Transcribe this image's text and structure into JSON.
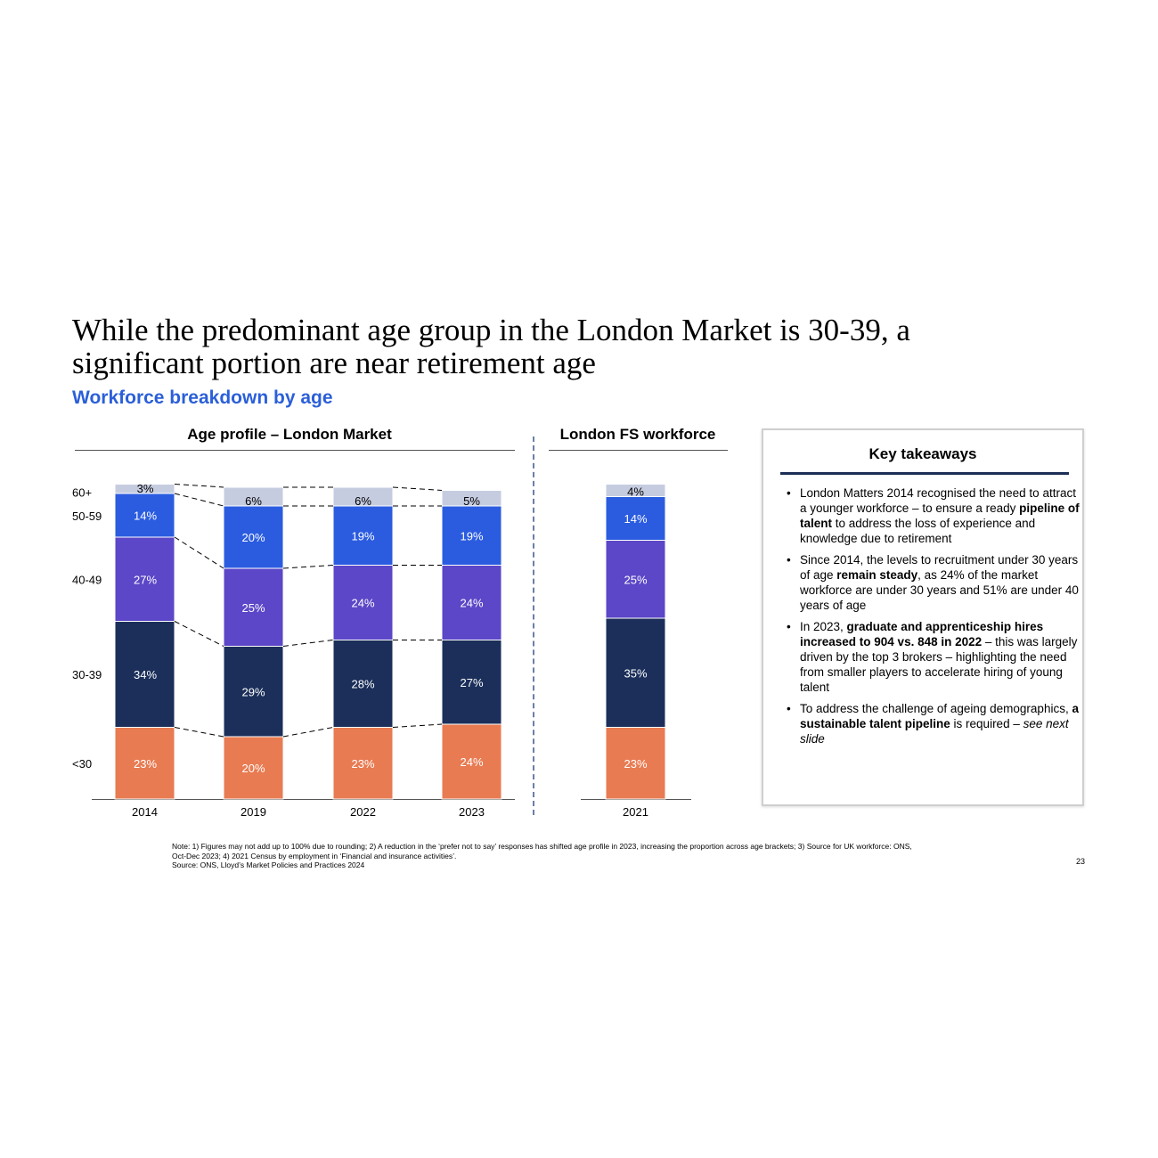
{
  "title_line1": "While the predominant age group in the London Market is 30-39, a",
  "title_line2": "significant portion are near retirement age",
  "subtitle": "Workforce breakdown by age",
  "panel_left_title": "Age profile – London Market",
  "panel_right_title": "London FS workforce",
  "colors": {
    "<30": "#e87b52",
    "30-39": "#1b2f5a",
    "40-49": "#5b47c7",
    "50-59": "#2b5ce0",
    "60+": "#c6cce0"
  },
  "chart_data": [
    {
      "type": "bar",
      "stacked": true,
      "title": "Age profile – London Market",
      "categories": [
        "2014",
        "2019",
        "2022",
        "2023"
      ],
      "series": [
        {
          "name": "<30",
          "values": [
            23,
            20,
            23,
            24
          ],
          "labels": [
            "23%",
            "20%",
            "23%",
            "24%"
          ]
        },
        {
          "name": "30-39",
          "values": [
            34,
            29,
            28,
            27
          ],
          "labels": [
            "34%",
            "29%",
            "28%",
            "27%"
          ]
        },
        {
          "name": "40-49",
          "values": [
            27,
            25,
            24,
            24
          ],
          "labels": [
            "27%",
            "25%",
            "24%",
            "24%"
          ]
        },
        {
          "name": "50-59",
          "values": [
            14,
            20,
            19,
            19
          ],
          "labels": [
            "14%",
            "20%",
            "19%",
            "19%"
          ]
        },
        {
          "name": "60+",
          "values": [
            3,
            6,
            6,
            5
          ],
          "labels": [
            "3%",
            "6%",
            "6%",
            "5%"
          ]
        }
      ]
    },
    {
      "type": "bar",
      "stacked": true,
      "title": "London FS workforce",
      "categories": [
        "2021"
      ],
      "series": [
        {
          "name": "<30",
          "values": [
            23
          ],
          "labels": [
            "23%"
          ]
        },
        {
          "name": "30-39",
          "values": [
            35
          ],
          "labels": [
            "35%"
          ]
        },
        {
          "name": "40-49",
          "values": [
            25
          ],
          "labels": [
            "25%"
          ]
        },
        {
          "name": "50-59",
          "values": [
            14
          ],
          "labels": [
            "14%"
          ]
        },
        {
          "name": "60+",
          "values": [
            4
          ],
          "labels": [
            "4%"
          ]
        }
      ]
    }
  ],
  "key_takeaways": {
    "heading": "Key takeaways",
    "items": [
      [
        {
          "t": "London Matters 2014 recognised the need to attract a younger workforce – to ensure a ready ",
          "s": "normal"
        },
        {
          "t": "pipeline of talent",
          "s": "bold"
        },
        {
          "t": " to address the loss of experience and knowledge due to retirement",
          "s": "normal"
        }
      ],
      [
        {
          "t": "Since 2014, the levels to recruitment under 30 years of age ",
          "s": "normal"
        },
        {
          "t": "remain steady",
          "s": "bold"
        },
        {
          "t": ", as 24% of the market workforce are under 30 years and 51% are under 40 years of age",
          "s": "normal"
        }
      ],
      [
        {
          "t": "In 2023, ",
          "s": "normal"
        },
        {
          "t": "graduate and apprenticeship hires increased to 904 vs. 848 in 2022",
          "s": "bold"
        },
        {
          "t": " – this was largely driven by the top 3 brokers – highlighting the need from smaller players to accelerate hiring of young talent",
          "s": "normal"
        }
      ],
      [
        {
          "t": "To address the challenge of ageing demographics, ",
          "s": "normal"
        },
        {
          "t": "a sustainable talent pipeline",
          "s": "bold"
        },
        {
          "t": " is required – ",
          "s": "normal"
        },
        {
          "t": "see next slide",
          "s": "italic"
        }
      ]
    ]
  },
  "notes": {
    "line1": "Note: 1) Figures may not add up to 100% due to rounding; 2) A reduction in the ‘prefer not to say’ responses has shifted age profile in 2023, increasing the proportion across age brackets; 3) Source for UK workforce: ONS,",
    "line2": "Oct-Dec 2023; 4) 2021 Census by employment in ‘Financial and insurance activities’.",
    "line3": "Source: ONS, Lloyd’s Market Policies and Practices 2024"
  },
  "page_number": "23"
}
